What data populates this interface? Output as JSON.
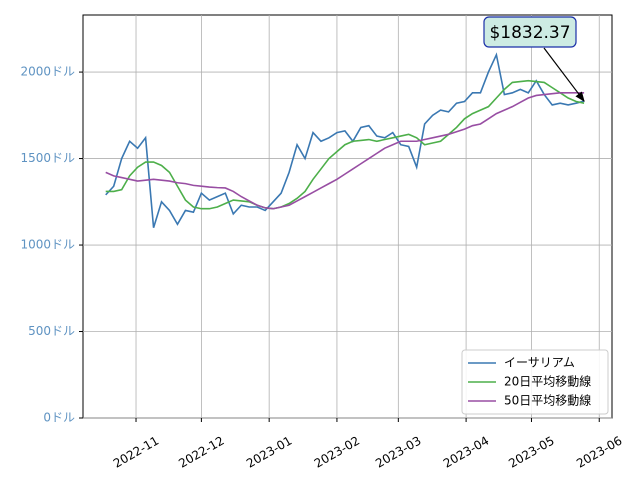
{
  "chart_data": {
    "type": "line",
    "x": [
      2022.795,
      2022.805,
      2022.815,
      2022.825,
      2022.835,
      2022.845,
      2022.855,
      2022.865,
      2022.875,
      2022.885,
      2022.895,
      2022.905,
      2022.915,
      2022.925,
      2022.935,
      2022.945,
      2022.955,
      2022.965,
      2022.975,
      2022.985,
      2022.995,
      2023.005,
      2023.015,
      2023.025,
      2023.035,
      2023.045,
      2023.055,
      2023.065,
      2023.075,
      2023.085,
      2023.095,
      2023.105,
      2023.115,
      2023.125,
      2023.135,
      2023.145,
      2023.155,
      2023.165,
      2023.175,
      2023.185,
      2023.195,
      2023.205,
      2023.215,
      2023.225,
      2023.235,
      2023.245,
      2023.255,
      2023.265,
      2023.275,
      2023.285,
      2023.295,
      2023.305,
      2023.315,
      2023.325,
      2023.335,
      2023.345,
      2023.355,
      2023.365,
      2023.375,
      2023.385,
      2023.395
    ],
    "series": [
      {
        "name": "イーサリアム",
        "color": "#3a78b2",
        "values": [
          1290,
          1340,
          1500,
          1600,
          1560,
          1620,
          1100,
          1250,
          1200,
          1120,
          1200,
          1190,
          1300,
          1260,
          1280,
          1300,
          1180,
          1230,
          1220,
          1220,
          1200,
          1250,
          1300,
          1420,
          1580,
          1500,
          1650,
          1600,
          1620,
          1650,
          1660,
          1600,
          1680,
          1690,
          1630,
          1620,
          1650,
          1580,
          1570,
          1450,
          1700,
          1750,
          1780,
          1770,
          1820,
          1830,
          1880,
          1880,
          2000,
          2100,
          1870,
          1880,
          1900,
          1880,
          1950,
          1870,
          1810,
          1820,
          1810,
          1820,
          1832.37
        ]
      },
      {
        "name": "20日平均移動線",
        "color": "#4daf4a",
        "values": [
          1310,
          1310,
          1320,
          1400,
          1450,
          1480,
          1480,
          1460,
          1420,
          1340,
          1260,
          1220,
          1210,
          1210,
          1220,
          1240,
          1260,
          1255,
          1250,
          1230,
          1215,
          1210,
          1220,
          1240,
          1270,
          1310,
          1380,
          1440,
          1500,
          1540,
          1580,
          1600,
          1605,
          1610,
          1600,
          1610,
          1620,
          1630,
          1640,
          1620,
          1580,
          1590,
          1600,
          1640,
          1680,
          1730,
          1760,
          1780,
          1800,
          1850,
          1900,
          1940,
          1945,
          1950,
          1945,
          1940,
          1910,
          1880,
          1850,
          1830,
          1820
        ]
      },
      {
        "name": "50日平均移動線",
        "color": "#984ea3",
        "values": [
          1420,
          1400,
          1390,
          1380,
          1370,
          1375,
          1380,
          1375,
          1370,
          1360,
          1355,
          1345,
          1340,
          1335,
          1332,
          1330,
          1310,
          1280,
          1255,
          1230,
          1215,
          1210,
          1220,
          1230,
          1255,
          1280,
          1305,
          1330,
          1355,
          1380,
          1410,
          1440,
          1470,
          1500,
          1530,
          1560,
          1580,
          1600,
          1600,
          1600,
          1610,
          1620,
          1630,
          1640,
          1655,
          1670,
          1690,
          1700,
          1730,
          1760,
          1780,
          1800,
          1825,
          1850,
          1865,
          1870,
          1875,
          1880,
          1880,
          1880,
          1880
        ]
      }
    ],
    "xlim": [
      2022.7665,
      2023.43
    ],
    "xticks": [
      {
        "value": 2022.833,
        "label": "2022-11"
      },
      {
        "value": 2022.915,
        "label": "2022-12"
      },
      {
        "value": 2023.0,
        "label": "2023-01"
      },
      {
        "value": 2023.085,
        "label": "2023-02"
      },
      {
        "value": 2023.162,
        "label": "2023-03"
      },
      {
        "value": 2023.247,
        "label": "2023-04"
      },
      {
        "value": 2023.329,
        "label": "2023-05"
      },
      {
        "value": 2023.414,
        "label": "2023-06"
      }
    ],
    "ylim": [
      0,
      2330
    ],
    "yticks": [
      {
        "value": 0,
        "label": "0ドル"
      },
      {
        "value": 500,
        "label": "500ドル"
      },
      {
        "value": 1000,
        "label": "1000ドル"
      },
      {
        "value": 1500,
        "label": "1500ドル"
      },
      {
        "value": 2000,
        "label": "2000ドル"
      }
    ],
    "grid": true,
    "legend": "lower right",
    "annotation": "$1832.37"
  }
}
